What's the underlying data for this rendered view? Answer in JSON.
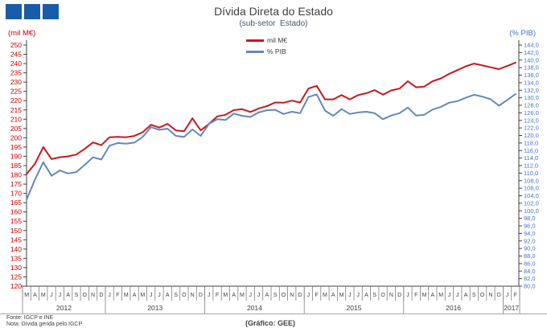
{
  "header": {
    "title": "Dívida Direta do Estado",
    "subtitle": "(sub-setor  Estado)"
  },
  "axes": {
    "left_unit": "(mil M€)",
    "right_unit": "(% PIB)"
  },
  "legend": {
    "series1_label": "mil M€",
    "series2_label": "% PIB"
  },
  "footer": {
    "fonte": "Fonte: IGCP e INE",
    "nota": "Nota: Dívida gerida pelo IGCP",
    "credit": "(Gráfico:  GEE)"
  },
  "colors": {
    "red_line": "#C7191F",
    "blue_line": "#6289B8",
    "left_tick_text": "#C00000",
    "right_tick_text": "#4472C4",
    "axis": "#404040",
    "separators": "#7F7F7F",
    "logo_blue": "#1A5CA8"
  },
  "chart_data": {
    "type": "line",
    "title": "Dívida Direta do Estado",
    "subtitle": "(sub-setor Estado)",
    "x_month_labels": [
      "M",
      "A",
      "M",
      "J",
      "J",
      "A",
      "S",
      "O",
      "N",
      "D",
      "J",
      "F",
      "M",
      "A",
      "M",
      "J",
      "J",
      "A",
      "S",
      "O",
      "N",
      "D",
      "J",
      "F",
      "M",
      "A",
      "M",
      "J",
      "J",
      "A",
      "S",
      "O",
      "N",
      "D",
      "J",
      "F",
      "M",
      "A",
      "M",
      "J",
      "J",
      "A",
      "S",
      "O",
      "N",
      "D",
      "J",
      "F",
      "M",
      "A",
      "M",
      "J",
      "J",
      "A",
      "S",
      "O",
      "N",
      "D",
      "J",
      "F"
    ],
    "year_groups": [
      {
        "label": "2012",
        "months": 10
      },
      {
        "label": "2013",
        "months": 12
      },
      {
        "label": "2014",
        "months": 12
      },
      {
        "label": "2015",
        "months": 12
      },
      {
        "label": "2016",
        "months": 12
      },
      {
        "label": "2017",
        "months": 2
      }
    ],
    "left_axis": {
      "label": "(mil M€)",
      "min": 120,
      "max": 250,
      "step": 5,
      "decimals": 0
    },
    "right_axis": {
      "label": "(% PIB)",
      "min": 80,
      "max": 144,
      "step": 2,
      "decimals": 1,
      "decimal_comma": true
    },
    "legend_position": "top-center",
    "grid": false,
    "series": [
      {
        "name": "mil M€",
        "axis": "left",
        "color": "#C7191F",
        "values": [
          180.5,
          186,
          195,
          188.5,
          189.5,
          190,
          191,
          194,
          197.5,
          196,
          200.3,
          200.5,
          200.3,
          201,
          203,
          207,
          205.5,
          207.5,
          204,
          203.5,
          210.5,
          204,
          207.5,
          211.5,
          212.4,
          214.9,
          215.4,
          213.9,
          215.8,
          217.1,
          219,
          218.9,
          220,
          219,
          226.5,
          228,
          220.7,
          220.7,
          223,
          220.7,
          223,
          224,
          225.7,
          223.2,
          225.5,
          226.5,
          230.5,
          227.2,
          227.6,
          230.5,
          232,
          234.5,
          236.5,
          238.5,
          240,
          239,
          238,
          237,
          238.7,
          240.5
        ]
      },
      {
        "name": "% PIB",
        "axis": "right",
        "color": "#6289B8",
        "values": [
          103,
          108.3,
          112.9,
          109.3,
          110.7,
          109.9,
          110.3,
          112.2,
          114.2,
          113.6,
          117.3,
          118,
          117.8,
          118.1,
          119.6,
          122.2,
          121.5,
          121.8,
          119.9,
          119.6,
          121.6,
          119.9,
          123.1,
          124.3,
          124.1,
          125.8,
          125.2,
          124.9,
          126.1,
          126.7,
          126.8,
          125.7,
          126.3,
          125.9,
          130.2,
          130.9,
          126.6,
          125.2,
          127,
          125.7,
          126.1,
          126.3,
          125.9,
          124.3,
          125.3,
          125.9,
          127.4,
          125.3,
          125.5,
          126.9,
          127.6,
          128.7,
          129.1,
          130,
          130.8,
          130.3,
          129.6,
          127.9,
          129.4,
          131
        ]
      }
    ]
  }
}
